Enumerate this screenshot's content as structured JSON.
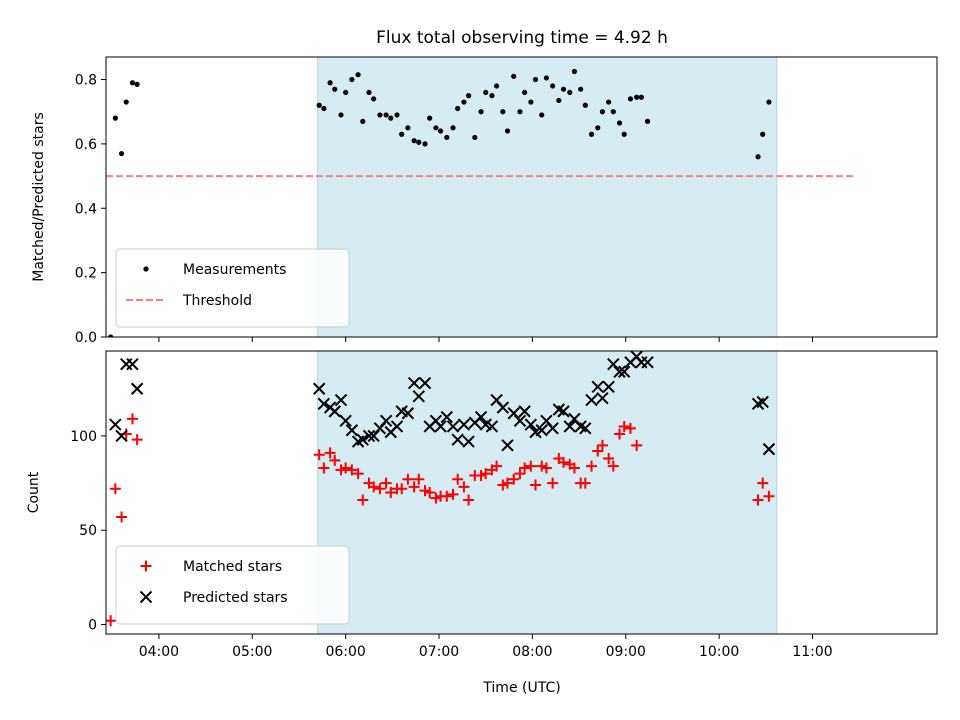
{
  "chart_data": {
    "type": "scatter",
    "title": "Flux total observing time = 4.92 h",
    "xlabel": "Time (UTC)",
    "x_ticks": [
      "04:00",
      "05:00",
      "06:00",
      "07:00",
      "08:00",
      "09:00",
      "10:00",
      "11:00"
    ],
    "x_range": [
      "03:26",
      "12:20"
    ],
    "highlight_span": {
      "start": "05:42",
      "end": "10:37",
      "color": "#add8e6"
    },
    "panels": [
      {
        "name": "ratio",
        "ylabel": "Matched/Predicted stars",
        "ylim": [
          0,
          0.87
        ],
        "y_ticks": [
          "0.0",
          "0.2",
          "0.4",
          "0.6",
          "0.8"
        ],
        "legend_position": "lower left",
        "threshold": {
          "name": "Threshold",
          "value": 0.5,
          "x_start": "03:26",
          "x_end": "11:28",
          "color": "#ff7f7f"
        },
        "series": [
          {
            "name": "Measurements",
            "color": "#000000",
            "marker": "dot",
            "points": [
              [
                "03:29",
                0.0
              ],
              [
                "03:32",
                0.68
              ],
              [
                "03:36",
                0.57
              ],
              [
                "03:39",
                0.73
              ],
              [
                "03:43",
                0.79
              ],
              [
                "03:46",
                0.785
              ],
              [
                "05:43",
                0.72
              ],
              [
                "05:46",
                0.71
              ],
              [
                "05:50",
                0.79
              ],
              [
                "05:53",
                0.77
              ],
              [
                "05:57",
                0.69
              ],
              [
                "06:00",
                0.76
              ],
              [
                "06:04",
                0.8
              ],
              [
                "06:08",
                0.815
              ],
              [
                "06:11",
                0.67
              ],
              [
                "06:15",
                0.76
              ],
              [
                "06:18",
                0.74
              ],
              [
                "06:22",
                0.69
              ],
              [
                "06:26",
                0.69
              ],
              [
                "06:29",
                0.68
              ],
              [
                "06:33",
                0.69
              ],
              [
                "06:36",
                0.63
              ],
              [
                "06:40",
                0.65
              ],
              [
                "06:44",
                0.61
              ],
              [
                "06:47",
                0.605
              ],
              [
                "06:51",
                0.6
              ],
              [
                "06:54",
                0.68
              ],
              [
                "06:58",
                0.65
              ],
              [
                "07:01",
                0.64
              ],
              [
                "07:05",
                0.62
              ],
              [
                "07:09",
                0.65
              ],
              [
                "07:12",
                0.71
              ],
              [
                "07:16",
                0.73
              ],
              [
                "07:19",
                0.75
              ],
              [
                "07:23",
                0.62
              ],
              [
                "07:27",
                0.7
              ],
              [
                "07:30",
                0.76
              ],
              [
                "07:34",
                0.75
              ],
              [
                "07:37",
                0.78
              ],
              [
                "07:41",
                0.7
              ],
              [
                "07:44",
                0.64
              ],
              [
                "07:48",
                0.81
              ],
              [
                "07:52",
                0.7
              ],
              [
                "07:55",
                0.76
              ],
              [
                "07:59",
                0.73
              ],
              [
                "08:02",
                0.8
              ],
              [
                "08:06",
                0.69
              ],
              [
                "08:09",
                0.805
              ],
              [
                "08:13",
                0.78
              ],
              [
                "08:17",
                0.735
              ],
              [
                "08:20",
                0.77
              ],
              [
                "08:24",
                0.76
              ],
              [
                "08:27",
                0.825
              ],
              [
                "08:31",
                0.77
              ],
              [
                "08:34",
                0.72
              ],
              [
                "08:38",
                0.63
              ],
              [
                "08:42",
                0.65
              ],
              [
                "08:45",
                0.7
              ],
              [
                "08:49",
                0.73
              ],
              [
                "08:52",
                0.7
              ],
              [
                "08:56",
                0.665
              ],
              [
                "08:59",
                0.63
              ],
              [
                "09:03",
                0.74
              ],
              [
                "09:07",
                0.745
              ],
              [
                "09:10",
                0.745
              ],
              [
                "09:14",
                0.67
              ],
              [
                "10:25",
                0.56
              ],
              [
                "10:28",
                0.63
              ],
              [
                "10:32",
                0.73
              ]
            ]
          }
        ]
      },
      {
        "name": "counts",
        "ylabel": "Count",
        "ylim": [
          -5,
          145
        ],
        "y_ticks": [
          "0",
          "50",
          "100"
        ],
        "legend_position": "lower left",
        "series": [
          {
            "name": "Matched stars",
            "color": "#ff0000",
            "marker": "plus",
            "points": [
              [
                "03:29",
                2
              ],
              [
                "03:32",
                72
              ],
              [
                "03:36",
                57
              ],
              [
                "03:39",
                101
              ],
              [
                "03:43",
                109
              ],
              [
                "03:46",
                98
              ],
              [
                "05:43",
                90
              ],
              [
                "05:46",
                83
              ],
              [
                "05:50",
                91
              ],
              [
                "05:53",
                87
              ],
              [
                "05:57",
                82
              ],
              [
                "06:00",
                83
              ],
              [
                "06:04",
                82
              ],
              [
                "06:08",
                80
              ],
              [
                "06:11",
                66
              ],
              [
                "06:15",
                75
              ],
              [
                "06:18",
                73
              ],
              [
                "06:22",
                72
              ],
              [
                "06:26",
                75
              ],
              [
                "06:29",
                70
              ],
              [
                "06:33",
                72
              ],
              [
                "06:36",
                72
              ],
              [
                "06:40",
                77
              ],
              [
                "06:44",
                73
              ],
              [
                "06:47",
                77
              ],
              [
                "06:51",
                71
              ],
              [
                "06:54",
                70
              ],
              [
                "06:58",
                67
              ],
              [
                "07:01",
                68
              ],
              [
                "07:05",
                68
              ],
              [
                "07:09",
                69
              ],
              [
                "07:12",
                77
              ],
              [
                "07:16",
                73
              ],
              [
                "07:19",
                66
              ],
              [
                "07:23",
                79
              ],
              [
                "07:27",
                79
              ],
              [
                "07:30",
                80
              ],
              [
                "07:34",
                82
              ],
              [
                "07:37",
                84
              ],
              [
                "07:41",
                74
              ],
              [
                "07:44",
                75
              ],
              [
                "07:48",
                77
              ],
              [
                "07:52",
                80
              ],
              [
                "07:55",
                83
              ],
              [
                "07:59",
                84
              ],
              [
                "08:02",
                74
              ],
              [
                "08:06",
                84
              ],
              [
                "08:09",
                83
              ],
              [
                "08:13",
                75
              ],
              [
                "08:17",
                88
              ],
              [
                "08:20",
                86
              ],
              [
                "08:24",
                85
              ],
              [
                "08:27",
                83
              ],
              [
                "08:31",
                75
              ],
              [
                "08:34",
                75
              ],
              [
                "08:38",
                84
              ],
              [
                "08:42",
                92
              ],
              [
                "08:45",
                95
              ],
              [
                "08:49",
                88
              ],
              [
                "08:52",
                84
              ],
              [
                "08:56",
                101
              ],
              [
                "08:59",
                105
              ],
              [
                "09:03",
                104
              ],
              [
                "09:07",
                95
              ],
              [
                "10:25",
                66
              ],
              [
                "10:28",
                75
              ],
              [
                "10:32",
                68
              ]
            ]
          },
          {
            "name": "Predicted stars",
            "color": "#000000",
            "marker": "x",
            "points": [
              [
                "03:32",
                106
              ],
              [
                "03:36",
                100
              ],
              [
                "03:39",
                138
              ],
              [
                "03:43",
                138
              ],
              [
                "03:46",
                125
              ],
              [
                "05:43",
                125
              ],
              [
                "05:46",
                117
              ],
              [
                "05:50",
                115
              ],
              [
                "05:53",
                113
              ],
              [
                "05:57",
                119
              ],
              [
                "06:00",
                108
              ],
              [
                "06:04",
                103
              ],
              [
                "06:08",
                97
              ],
              [
                "06:11",
                98
              ],
              [
                "06:15",
                100
              ],
              [
                "06:18",
                100
              ],
              [
                "06:22",
                104
              ],
              [
                "06:26",
                108
              ],
              [
                "06:29",
                102
              ],
              [
                "06:33",
                105
              ],
              [
                "06:36",
                113
              ],
              [
                "06:40",
                112
              ],
              [
                "06:44",
                128
              ],
              [
                "06:47",
                121
              ],
              [
                "06:51",
                128
              ],
              [
                "06:54",
                105
              ],
              [
                "06:58",
                108
              ],
              [
                "07:01",
                105
              ],
              [
                "07:05",
                110
              ],
              [
                "07:09",
                105
              ],
              [
                "07:12",
                98
              ],
              [
                "07:16",
                106
              ],
              [
                "07:19",
                97
              ],
              [
                "07:23",
                107
              ],
              [
                "07:27",
                110
              ],
              [
                "07:30",
                106
              ],
              [
                "07:34",
                105
              ],
              [
                "07:37",
                119
              ],
              [
                "07:41",
                115
              ],
              [
                "07:44",
                95
              ],
              [
                "07:48",
                112
              ],
              [
                "07:52",
                108
              ],
              [
                "07:55",
                113
              ],
              [
                "07:59",
                106
              ],
              [
                "08:02",
                102
              ],
              [
                "08:06",
                103
              ],
              [
                "08:09",
                108
              ],
              [
                "08:13",
                104
              ],
              [
                "08:17",
                114
              ],
              [
                "08:20",
                113
              ],
              [
                "08:24",
                105
              ],
              [
                "08:27",
                109
              ],
              [
                "08:31",
                105
              ],
              [
                "08:34",
                104
              ],
              [
                "08:38",
                119
              ],
              [
                "08:42",
                126
              ],
              [
                "08:45",
                120
              ],
              [
                "08:49",
                126
              ],
              [
                "08:52",
                138
              ],
              [
                "08:56",
                134
              ],
              [
                "08:59",
                134
              ],
              [
                "09:03",
                139
              ],
              [
                "09:07",
                142
              ],
              [
                "09:10",
                139
              ],
              [
                "09:14",
                139
              ],
              [
                "10:25",
                117
              ],
              [
                "10:28",
                118
              ],
              [
                "10:32",
                93
              ]
            ]
          }
        ]
      }
    ]
  }
}
